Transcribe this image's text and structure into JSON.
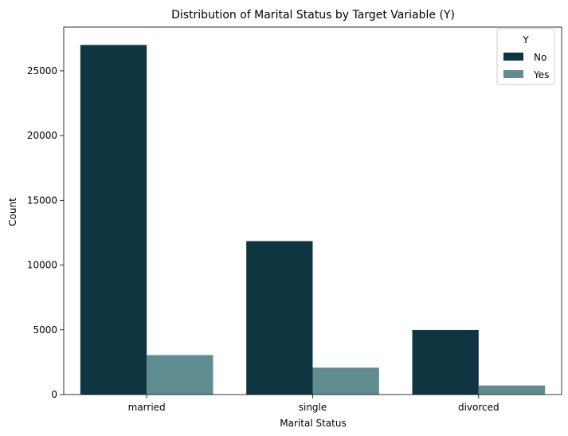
{
  "chart_data": {
    "type": "bar",
    "title": "Distribution of Marital Status by Target Variable (Y)",
    "xlabel": "Marital Status",
    "ylabel": "Count",
    "categories": [
      "married",
      "single",
      "divorced"
    ],
    "series": [
      {
        "name": "No",
        "values": [
          27000,
          11850,
          4990
        ],
        "color": "#0f3640"
      },
      {
        "name": "Yes",
        "values": [
          3050,
          2080,
          700
        ],
        "color": "#5f8d91"
      }
    ],
    "ylim": [
      0,
      28380
    ],
    "yticks": [
      0,
      5000,
      10000,
      15000,
      20000,
      25000
    ],
    "legend": {
      "title": "Y",
      "placement": "top-right"
    },
    "grid": false
  }
}
